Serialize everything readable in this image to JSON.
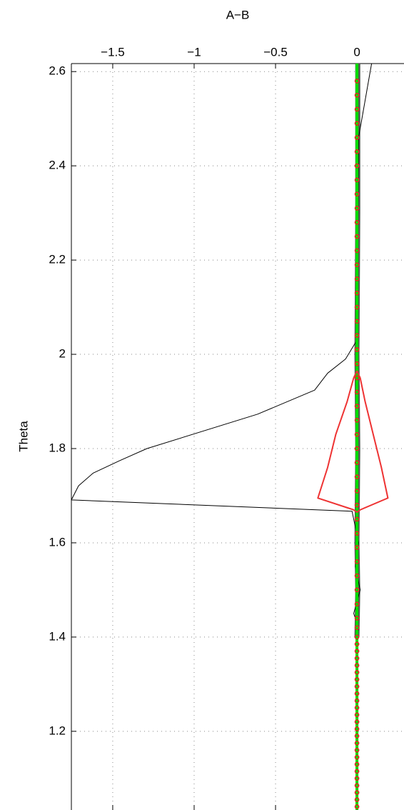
{
  "chart_data": {
    "type": "line",
    "xlabel": "A−B",
    "ylabel": "Theta",
    "xlim": [
      -1.754,
      0.289
    ],
    "ylim": [
      1.033,
      2.617
    ],
    "xticks": [
      {
        "value": -1.5,
        "label": "−1.5"
      },
      {
        "value": -1,
        "label": "−1"
      },
      {
        "value": -0.5,
        "label": "−0.5"
      },
      0
    ],
    "yticks": [
      1.2,
      1.4,
      1.6,
      1.8,
      2,
      2.2,
      2.4,
      2.6
    ],
    "grid": true,
    "series": [
      {
        "style": "line",
        "color": "#555555",
        "width": 7,
        "x": [
          0.005,
          0.005,
          0,
          0.005,
          0,
          0.005,
          0
        ],
        "y": [
          2.617,
          2.3,
          2.0,
          1.8,
          1.6,
          1.5,
          1.4
        ]
      },
      {
        "style": "line",
        "color": "#000000",
        "width": 1,
        "x": [
          0.09,
          0.01,
          0.005,
          0,
          -0.07,
          -0.18,
          -0.26,
          -0.61,
          -1.29,
          -1.46,
          -1.62,
          -1.71,
          -1.754,
          -0.03,
          0.01,
          -0.01,
          0.02,
          -0.02,
          0.01,
          0
        ],
        "y": [
          2.617,
          2.46,
          2.2,
          2.03,
          1.99,
          1.96,
          1.924,
          1.873,
          1.8,
          1.774,
          1.748,
          1.721,
          1.691,
          1.667,
          1.6,
          1.55,
          1.5,
          1.45,
          1.42,
          1.4
        ]
      },
      {
        "style": "line",
        "color": "#00dd00",
        "width": 4,
        "x": [
          0,
          0
        ],
        "y": [
          2.617,
          1.033
        ]
      },
      {
        "style": "line",
        "color": "#ee3333",
        "width": 2,
        "x": [
          0,
          0.02,
          0.05,
          0.1,
          0.15,
          0.19,
          0.02,
          0,
          -0.02,
          -0.24,
          -0.18,
          -0.13,
          -0.06,
          -0.02,
          0
        ],
        "y": [
          1.965,
          1.95,
          1.9,
          1.83,
          1.76,
          1.695,
          1.67,
          1.665,
          1.67,
          1.695,
          1.76,
          1.83,
          1.9,
          1.95,
          1.965
        ]
      },
      {
        "style": "marker",
        "color": "#ee2222",
        "width": 1.5,
        "x": [
          0,
          0,
          0,
          0,
          0,
          0,
          0,
          0,
          0,
          0,
          0,
          0,
          0,
          0,
          0,
          0,
          0,
          0,
          0,
          0,
          0,
          0,
          0,
          0,
          0,
          0,
          0,
          0,
          0,
          0,
          0,
          0,
          0,
          0,
          0,
          0,
          0,
          0,
          0,
          0,
          0,
          0,
          0,
          0,
          0,
          0,
          0,
          0,
          0,
          0,
          0,
          0,
          0,
          0,
          0,
          0,
          0,
          0,
          0,
          0,
          0,
          0,
          0,
          0,
          0
        ],
        "y": [
          2.58,
          2.55,
          2.52,
          2.49,
          2.46,
          2.43,
          2.4,
          2.37,
          2.34,
          2.31,
          2.28,
          2.25,
          2.22,
          2.19,
          2.16,
          2.13,
          2.1,
          2.07,
          2.04,
          2.01,
          1.98,
          1.95,
          1.92,
          1.89,
          1.86,
          1.83,
          1.8,
          1.77,
          1.74,
          1.71,
          1.68,
          1.65,
          1.62,
          1.59,
          1.56,
          1.53,
          1.5,
          1.47,
          1.44,
          1.42,
          1.4,
          1.385,
          1.37,
          1.355,
          1.34,
          1.325,
          1.31,
          1.295,
          1.28,
          1.265,
          1.25,
          1.235,
          1.22,
          1.205,
          1.19,
          1.175,
          1.16,
          1.145,
          1.13,
          1.115,
          1.1,
          1.085,
          1.07,
          1.055,
          1.04
        ]
      }
    ]
  }
}
